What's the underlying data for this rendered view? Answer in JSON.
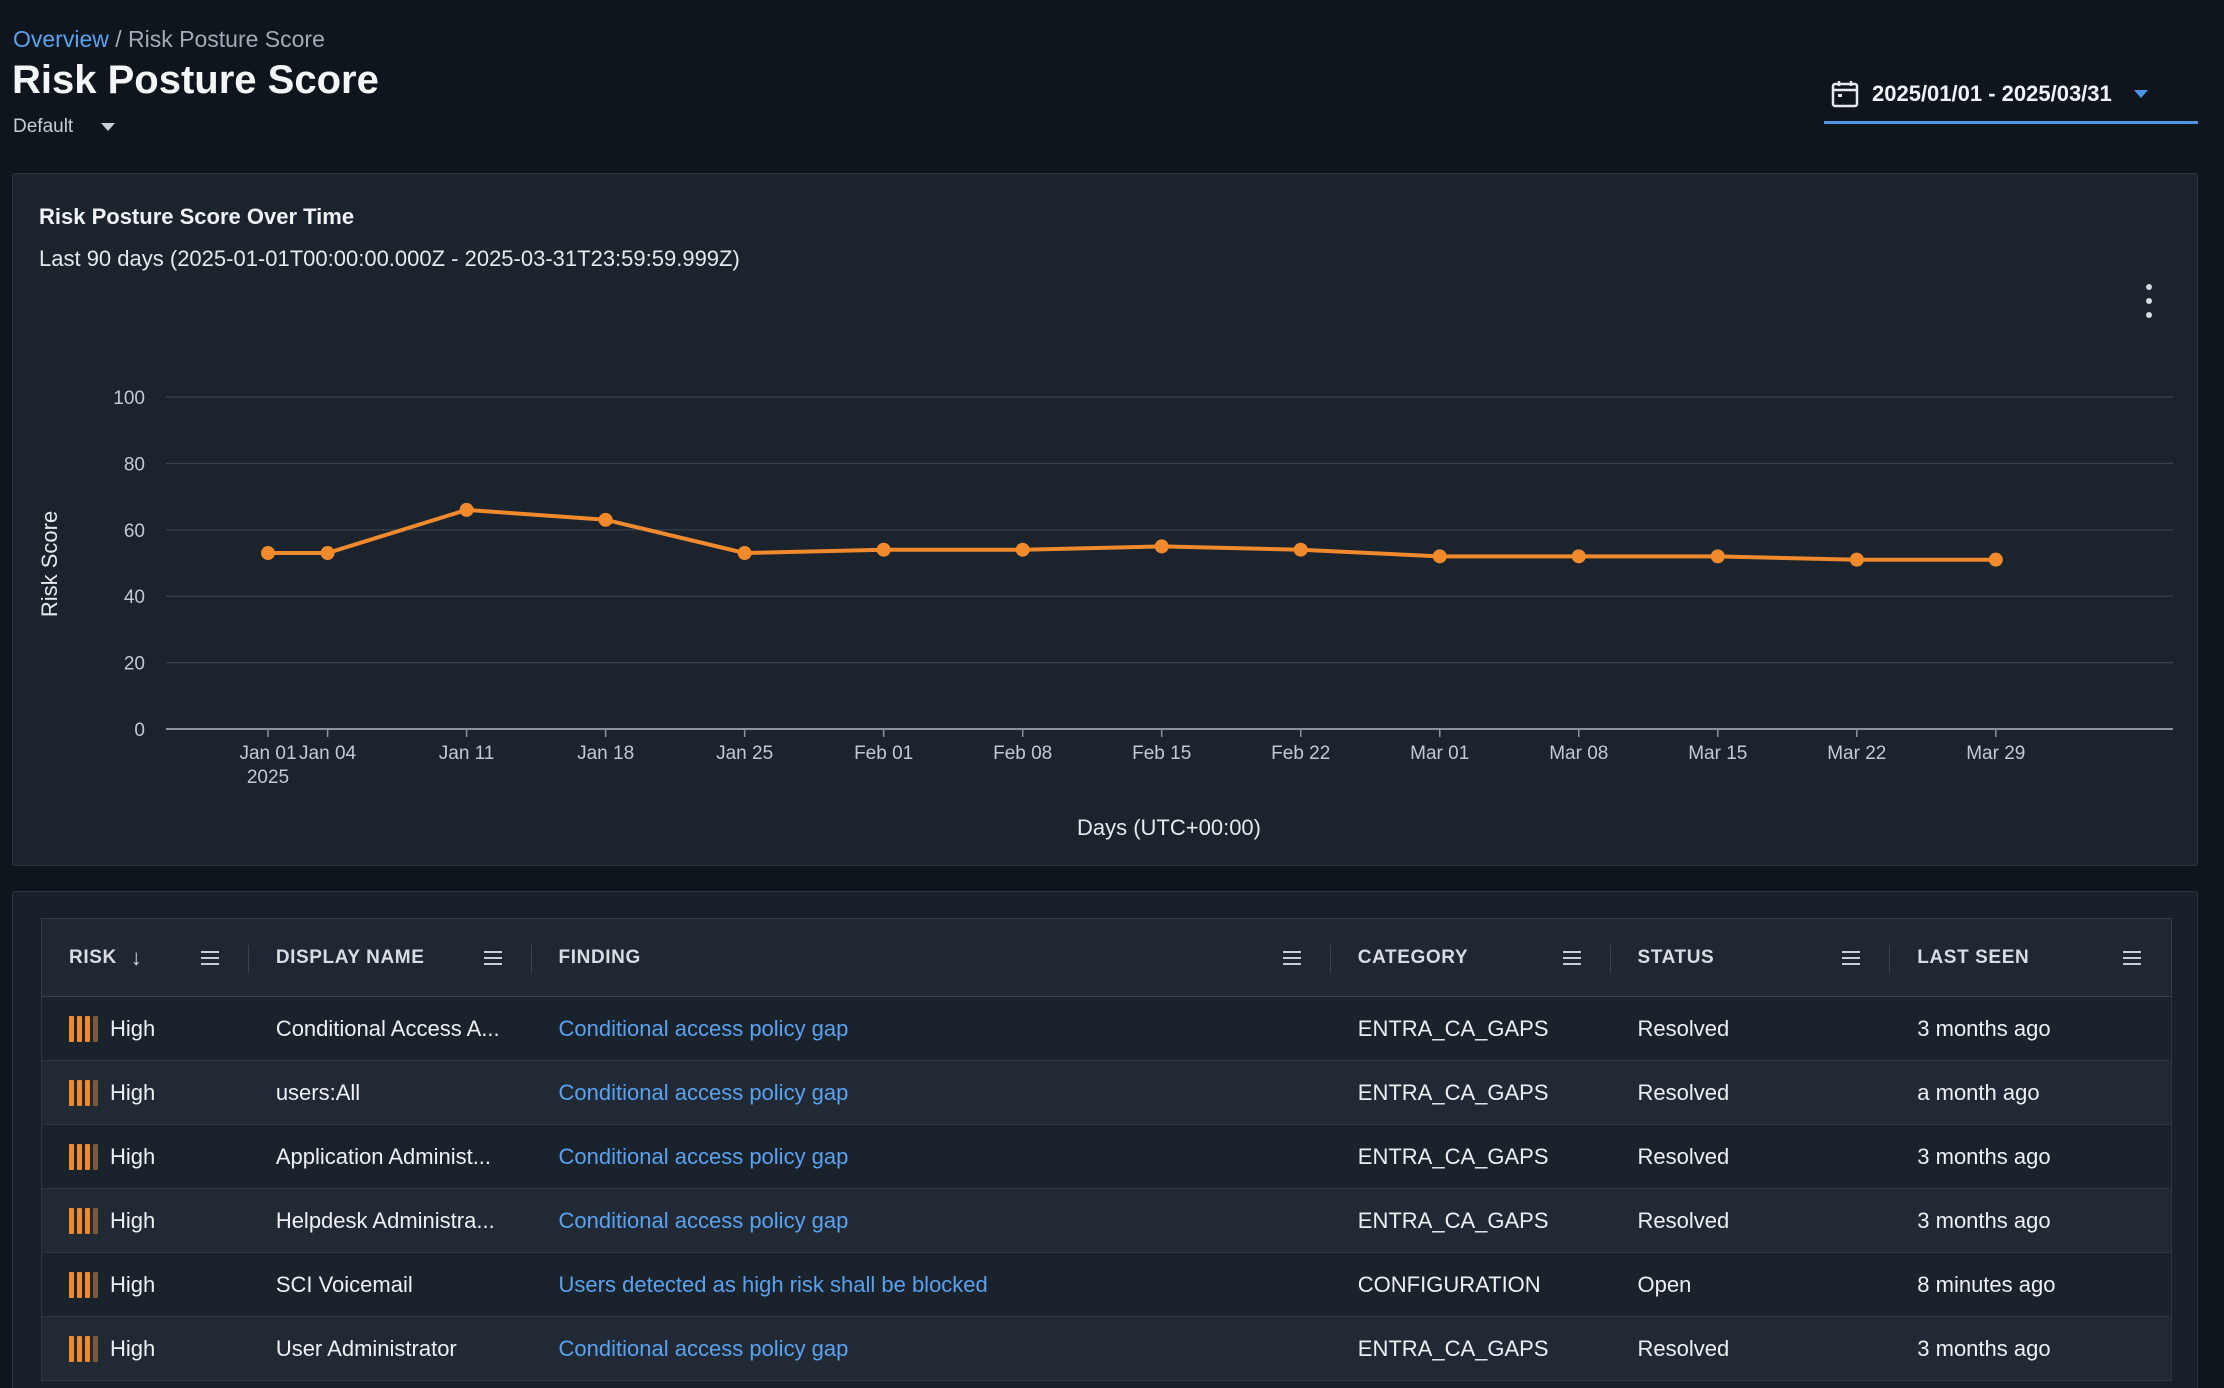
{
  "breadcrumb": {
    "parent": "Overview",
    "separator": "/",
    "current": "Risk Posture Score"
  },
  "page": {
    "title": "Risk Posture Score",
    "view": "Default",
    "date_range": "2025/01/01 - 2025/03/31"
  },
  "chart_card": {
    "title": "Risk Posture Score Over Time",
    "subtitle": "Last 90 days (2025-01-01T00:00:00.000Z - 2025-03-31T23:59:59.999Z)"
  },
  "chart_data": {
    "type": "line",
    "title": "Risk Posture Score Over Time",
    "ylabel": "Risk Score",
    "xlabel": "Days (UTC+00:00)",
    "ylim": [
      0,
      100
    ],
    "yticks": [
      0,
      20,
      40,
      60,
      80,
      100
    ],
    "xticks": [
      {
        "date": "2025-01-01",
        "label": "Jan 01",
        "sublabel": "2025"
      },
      {
        "date": "2025-01-04",
        "label": "Jan 04"
      },
      {
        "date": "2025-01-11",
        "label": "Jan 11"
      },
      {
        "date": "2025-01-18",
        "label": "Jan 18"
      },
      {
        "date": "2025-01-25",
        "label": "Jan 25"
      },
      {
        "date": "2025-02-01",
        "label": "Feb 01"
      },
      {
        "date": "2025-02-08",
        "label": "Feb 08"
      },
      {
        "date": "2025-02-15",
        "label": "Feb 15"
      },
      {
        "date": "2025-02-22",
        "label": "Feb 22"
      },
      {
        "date": "2025-03-01",
        "label": "Mar 01"
      },
      {
        "date": "2025-03-08",
        "label": "Mar 08"
      },
      {
        "date": "2025-03-15",
        "label": "Mar 15"
      },
      {
        "date": "2025-03-22",
        "label": "Mar 22"
      },
      {
        "date": "2025-03-29",
        "label": "Mar 29"
      }
    ],
    "series": [
      {
        "color": "#f08a2c",
        "points": [
          {
            "x": "2025-01-01",
            "y": 53
          },
          {
            "x": "2025-01-04",
            "y": 53
          },
          {
            "x": "2025-01-11",
            "y": 66
          },
          {
            "x": "2025-01-18",
            "y": 63
          },
          {
            "x": "2025-01-25",
            "y": 53
          },
          {
            "x": "2025-02-01",
            "y": 54
          },
          {
            "x": "2025-02-08",
            "y": 54
          },
          {
            "x": "2025-02-15",
            "y": 55
          },
          {
            "x": "2025-02-22",
            "y": 54
          },
          {
            "x": "2025-03-01",
            "y": 52
          },
          {
            "x": "2025-03-08",
            "y": 52
          },
          {
            "x": "2025-03-15",
            "y": 52
          },
          {
            "x": "2025-03-22",
            "y": 51
          },
          {
            "x": "2025-03-29",
            "y": 51
          }
        ]
      }
    ],
    "grid": true,
    "legend": "none"
  },
  "table": {
    "columns": [
      "RISK",
      "DISPLAY NAME",
      "FINDING",
      "CATEGORY",
      "STATUS",
      "LAST SEEN"
    ],
    "rows": [
      {
        "risk": "High",
        "name": "Conditional Access A...",
        "finding": "Conditional access policy gap",
        "category": "ENTRA_CA_GAPS",
        "status": "Resolved",
        "last_seen": "3 months ago"
      },
      {
        "risk": "High",
        "name": "users:All",
        "finding": "Conditional access policy gap",
        "category": "ENTRA_CA_GAPS",
        "status": "Resolved",
        "last_seen": "a month ago"
      },
      {
        "risk": "High",
        "name": "Application Administ...",
        "finding": "Conditional access policy gap",
        "category": "ENTRA_CA_GAPS",
        "status": "Resolved",
        "last_seen": "3 months ago"
      },
      {
        "risk": "High",
        "name": "Helpdesk Administra...",
        "finding": "Conditional access policy gap",
        "category": "ENTRA_CA_GAPS",
        "status": "Resolved",
        "last_seen": "3 months ago"
      },
      {
        "risk": "High",
        "name": "SCI Voicemail",
        "finding": "Users detected as high risk shall be blocked",
        "category": "CONFIGURATION",
        "status": "Open",
        "last_seen": "8 minutes ago"
      },
      {
        "risk": "High",
        "name": "User Administrator",
        "finding": "Conditional access policy gap",
        "category": "ENTRA_CA_GAPS",
        "status": "Resolved",
        "last_seen": "3 months ago"
      }
    ]
  },
  "icons": {
    "calendar": "calendar-icon",
    "dropdown": "chevron-down-icon",
    "more": "more-vertical-icon",
    "column_menu": "menu-icon",
    "sort": "arrow-down-icon"
  }
}
